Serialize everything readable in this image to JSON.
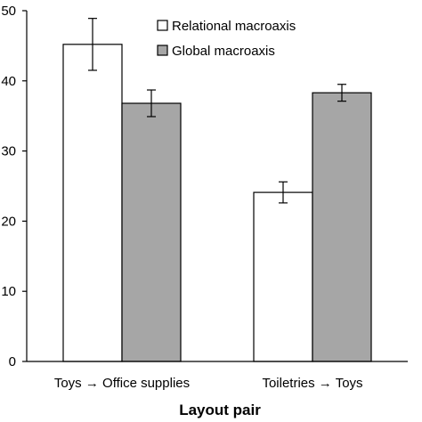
{
  "chart_data": {
    "type": "bar",
    "title": "",
    "xlabel": "Layout pair",
    "ylabel": "",
    "ylim": [
      0,
      50
    ],
    "yticks": [
      0,
      10,
      20,
      30,
      40,
      50
    ],
    "categories": [
      "Toys → Office supplies",
      "Toiletries → Toys"
    ],
    "series": [
      {
        "name": "Relational macroaxis",
        "values": [
          45.2,
          24.1
        ],
        "errors": [
          3.7,
          1.5
        ],
        "color": "#ffffff"
      },
      {
        "name": "Global macroaxis",
        "values": [
          36.8,
          38.3
        ],
        "errors": [
          1.9,
          1.2
        ],
        "color": "#a6a6a6"
      }
    ],
    "legend": "top-right",
    "grid": false
  }
}
